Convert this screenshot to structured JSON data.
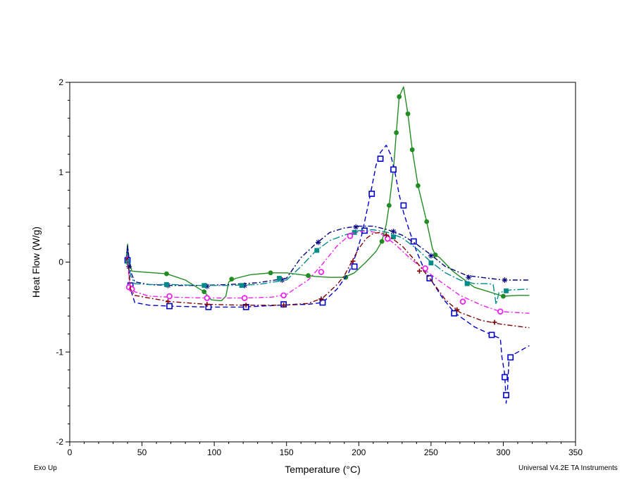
{
  "footer": {
    "exo_label": "Exo Up",
    "instrument_label": "Universal V4.2E TA Instruments"
  },
  "chart_data": {
    "type": "line",
    "title": "",
    "xlabel": "Temperature (°C)",
    "ylabel": "Heat Flow (W/g)",
    "xlim": [
      0,
      350
    ],
    "ylim": [
      -2,
      2
    ],
    "x_ticks": [
      0,
      50,
      100,
      150,
      200,
      250,
      300,
      350
    ],
    "y_ticks": [
      -2,
      -1,
      0,
      1,
      2
    ],
    "grid": false,
    "legend": "none",
    "series": [
      {
        "color": "#228B22",
        "marker": "dot",
        "dash": "",
        "points": [
          [
            39,
            0.02
          ],
          [
            40,
            0.2
          ],
          [
            41,
            0.02
          ],
          [
            43,
            -0.1
          ],
          [
            50,
            -0.11
          ],
          [
            67,
            -0.13
          ],
          [
            80,
            -0.2
          ],
          [
            88,
            -0.28
          ],
          [
            93,
            -0.33
          ],
          [
            98,
            -0.42
          ],
          [
            105,
            -0.43
          ],
          [
            108,
            -0.38
          ],
          [
            110,
            -0.22
          ],
          [
            115,
            -0.18
          ],
          [
            125,
            -0.14
          ],
          [
            139,
            -0.12
          ],
          [
            150,
            -0.12
          ],
          [
            160,
            -0.14
          ],
          [
            170,
            -0.16
          ],
          [
            180,
            -0.17
          ],
          [
            190,
            -0.17
          ],
          [
            197,
            -0.12
          ],
          [
            205,
            0.0
          ],
          [
            212,
            0.12
          ],
          [
            216,
            0.23
          ],
          [
            219,
            0.42
          ],
          [
            221,
            0.63
          ],
          [
            224,
            1.03
          ],
          [
            226,
            1.44
          ],
          [
            228,
            1.84
          ],
          [
            231,
            1.95
          ],
          [
            234,
            1.65
          ],
          [
            237,
            1.25
          ],
          [
            241,
            0.85
          ],
          [
            247,
            0.45
          ],
          [
            251,
            0.15
          ],
          [
            253,
            0.08
          ],
          [
            256,
            0.05
          ],
          [
            265,
            -0.1
          ],
          [
            280,
            -0.28
          ],
          [
            300,
            -0.38
          ],
          [
            310,
            -0.37
          ],
          [
            318,
            -0.37
          ]
        ],
        "marker_points": [
          [
            40,
            0.0
          ],
          [
            67,
            -0.13
          ],
          [
            93,
            -0.33
          ],
          [
            112,
            -0.19
          ],
          [
            139,
            -0.12
          ],
          [
            165,
            -0.15
          ],
          [
            191,
            -0.17
          ],
          [
            216,
            0.23
          ],
          [
            221,
            0.63
          ],
          [
            224,
            1.03
          ],
          [
            226,
            1.44
          ],
          [
            228,
            1.84
          ],
          [
            234,
            1.65
          ],
          [
            237,
            1.25
          ],
          [
            241,
            0.85
          ],
          [
            247,
            0.45
          ],
          [
            253,
            0.08
          ],
          [
            300,
            -0.38
          ]
        ]
      },
      {
        "color": "#0000CD",
        "marker": "open-square",
        "dash": "7,4",
        "points": [
          [
            39,
            0.02
          ],
          [
            40,
            0.15
          ],
          [
            41,
            -0.1
          ],
          [
            42,
            -0.3
          ],
          [
            45,
            -0.45
          ],
          [
            55,
            -0.48
          ],
          [
            70,
            -0.49
          ],
          [
            95,
            -0.5
          ],
          [
            120,
            -0.5
          ],
          [
            145,
            -0.48
          ],
          [
            165,
            -0.47
          ],
          [
            175,
            -0.45
          ],
          [
            185,
            -0.3
          ],
          [
            193,
            -0.12
          ],
          [
            198,
            0.08
          ],
          [
            202,
            0.3
          ],
          [
            205,
            0.52
          ],
          [
            208,
            0.75
          ],
          [
            212,
            1.08
          ],
          [
            215,
            1.22
          ],
          [
            219,
            1.3
          ],
          [
            222,
            1.2
          ],
          [
            225,
            1.0
          ],
          [
            228,
            0.75
          ],
          [
            231,
            0.55
          ],
          [
            235,
            0.35
          ],
          [
            240,
            0.12
          ],
          [
            245,
            -0.07
          ],
          [
            250,
            -0.2
          ],
          [
            258,
            -0.4
          ],
          [
            266,
            -0.56
          ],
          [
            280,
            -0.72
          ],
          [
            292,
            -0.81
          ],
          [
            298,
            -0.85
          ],
          [
            299,
            -1.05
          ],
          [
            301,
            -1.25
          ],
          [
            302,
            -1.57
          ],
          [
            303,
            -1.4
          ],
          [
            304,
            -1.07
          ],
          [
            308,
            -1.02
          ],
          [
            318,
            -0.93
          ]
        ],
        "marker_points": [
          [
            40,
            0.02
          ],
          [
            42,
            -0.26
          ],
          [
            69,
            -0.49
          ],
          [
            96,
            -0.5
          ],
          [
            122,
            -0.5
          ],
          [
            148,
            -0.47
          ],
          [
            175,
            -0.45
          ],
          [
            197,
            -0.05
          ],
          [
            204,
            0.35
          ],
          [
            209,
            0.76
          ],
          [
            215,
            1.15
          ],
          [
            224,
            1.03
          ],
          [
            231,
            0.63
          ],
          [
            238,
            0.23
          ],
          [
            249,
            -0.18
          ],
          [
            266,
            -0.57
          ],
          [
            292,
            -0.81
          ],
          [
            301,
            -1.28
          ],
          [
            302,
            -1.48
          ],
          [
            305,
            -1.06
          ]
        ]
      },
      {
        "color": "#000080",
        "marker": "asterisk",
        "dash": "7,3,2,3",
        "points": [
          [
            39,
            0.02
          ],
          [
            40,
            0.18
          ],
          [
            42,
            -0.1
          ],
          [
            45,
            -0.22
          ],
          [
            55,
            -0.25
          ],
          [
            70,
            -0.26
          ],
          [
            90,
            -0.26
          ],
          [
            110,
            -0.25
          ],
          [
            130,
            -0.23
          ],
          [
            150,
            -0.18
          ],
          [
            160,
            0.05
          ],
          [
            170,
            0.2
          ],
          [
            180,
            0.33
          ],
          [
            190,
            0.38
          ],
          [
            200,
            0.4
          ],
          [
            210,
            0.4
          ],
          [
            220,
            0.36
          ],
          [
            230,
            0.3
          ],
          [
            240,
            0.2
          ],
          [
            250,
            0.08
          ],
          [
            260,
            -0.05
          ],
          [
            275,
            -0.15
          ],
          [
            290,
            -0.18
          ],
          [
            300,
            -0.2
          ],
          [
            318,
            -0.2
          ]
        ],
        "marker_points": [
          [
            41,
            -0.05
          ],
          [
            68,
            -0.26
          ],
          [
            95,
            -0.27
          ],
          [
            121,
            -0.26
          ],
          [
            147,
            -0.2
          ],
          [
            172,
            0.22
          ],
          [
            198,
            0.39
          ],
          [
            224,
            0.34
          ],
          [
            250,
            0.07
          ],
          [
            276,
            -0.17
          ],
          [
            301,
            -0.2
          ]
        ]
      },
      {
        "color": "#008B8B",
        "marker": "filled-square",
        "dash": "10,3,2,3",
        "points": [
          [
            39,
            0.02
          ],
          [
            40,
            0.1
          ],
          [
            42,
            -0.15
          ],
          [
            45,
            -0.24
          ],
          [
            55,
            -0.25
          ],
          [
            70,
            -0.25
          ],
          [
            90,
            -0.26
          ],
          [
            110,
            -0.26
          ],
          [
            130,
            -0.25
          ],
          [
            150,
            -0.2
          ],
          [
            160,
            -0.05
          ],
          [
            170,
            0.12
          ],
          [
            180,
            0.24
          ],
          [
            190,
            0.3
          ],
          [
            200,
            0.35
          ],
          [
            210,
            0.36
          ],
          [
            220,
            0.33
          ],
          [
            230,
            0.27
          ],
          [
            240,
            0.15
          ],
          [
            250,
            0.0
          ],
          [
            260,
            -0.12
          ],
          [
            270,
            -0.2
          ],
          [
            280,
            -0.24
          ],
          [
            290,
            -0.24
          ],
          [
            293,
            -0.25
          ],
          [
            295,
            -0.47
          ],
          [
            297,
            -0.34
          ],
          [
            305,
            -0.31
          ],
          [
            318,
            -0.3
          ]
        ],
        "marker_points": [
          [
            40,
            0.01
          ],
          [
            67,
            -0.25
          ],
          [
            93,
            -0.26
          ],
          [
            119,
            -0.26
          ],
          [
            145,
            -0.18
          ],
          [
            171,
            0.13
          ],
          [
            197,
            0.33
          ],
          [
            224,
            0.28
          ],
          [
            250,
            -0.01
          ],
          [
            275,
            -0.24
          ],
          [
            302,
            -0.32
          ]
        ]
      },
      {
        "color": "#EE22EE",
        "marker": "open-circle",
        "dash": "7,3,2,3",
        "points": [
          [
            39,
            0.02
          ],
          [
            40,
            0.08
          ],
          [
            41,
            -0.2
          ],
          [
            42,
            -0.28
          ],
          [
            45,
            -0.33
          ],
          [
            55,
            -0.38
          ],
          [
            70,
            -0.39
          ],
          [
            95,
            -0.4
          ],
          [
            121,
            -0.4
          ],
          [
            140,
            -0.39
          ],
          [
            150,
            -0.36
          ],
          [
            165,
            -0.2
          ],
          [
            175,
            -0.02
          ],
          [
            185,
            0.18
          ],
          [
            195,
            0.32
          ],
          [
            205,
            0.35
          ],
          [
            215,
            0.32
          ],
          [
            225,
            0.2
          ],
          [
            235,
            0.05
          ],
          [
            245,
            -0.08
          ],
          [
            255,
            -0.2
          ],
          [
            270,
            -0.37
          ],
          [
            285,
            -0.48
          ],
          [
            298,
            -0.55
          ],
          [
            318,
            -0.57
          ]
        ],
        "marker_points": [
          [
            41,
            -0.28
          ],
          [
            43,
            -0.3
          ],
          [
            69,
            -0.38
          ],
          [
            95,
            -0.4
          ],
          [
            121,
            -0.4
          ],
          [
            148,
            -0.37
          ],
          [
            174,
            -0.11
          ],
          [
            194,
            0.29
          ],
          [
            220,
            0.26
          ],
          [
            246,
            -0.07
          ],
          [
            272,
            -0.44
          ],
          [
            298,
            -0.55
          ]
        ]
      },
      {
        "color": "#800000",
        "marker": "plus",
        "dash": "7,3,2,3",
        "points": [
          [
            39,
            0.02
          ],
          [
            40,
            0.05
          ],
          [
            42,
            -0.3
          ],
          [
            45,
            -0.37
          ],
          [
            55,
            -0.4
          ],
          [
            70,
            -0.44
          ],
          [
            95,
            -0.47
          ],
          [
            120,
            -0.48
          ],
          [
            145,
            -0.48
          ],
          [
            165,
            -0.46
          ],
          [
            175,
            -0.4
          ],
          [
            185,
            -0.25
          ],
          [
            190,
            -0.15
          ],
          [
            195,
            0.0
          ],
          [
            200,
            0.15
          ],
          [
            205,
            0.26
          ],
          [
            210,
            0.32
          ],
          [
            215,
            0.33
          ],
          [
            220,
            0.3
          ],
          [
            230,
            0.18
          ],
          [
            240,
            0.0
          ],
          [
            250,
            -0.2
          ],
          [
            260,
            -0.42
          ],
          [
            270,
            -0.56
          ],
          [
            285,
            -0.65
          ],
          [
            298,
            -0.69
          ],
          [
            318,
            -0.73
          ]
        ],
        "marker_points": [
          [
            68,
            -0.44
          ],
          [
            95,
            -0.47
          ],
          [
            122,
            -0.48
          ],
          [
            148,
            -0.48
          ],
          [
            174,
            -0.41
          ],
          [
            196,
            0.01
          ],
          [
            219,
            0.3
          ],
          [
            242,
            -0.1
          ],
          [
            268,
            -0.53
          ],
          [
            294,
            -0.67
          ]
        ]
      }
    ]
  }
}
